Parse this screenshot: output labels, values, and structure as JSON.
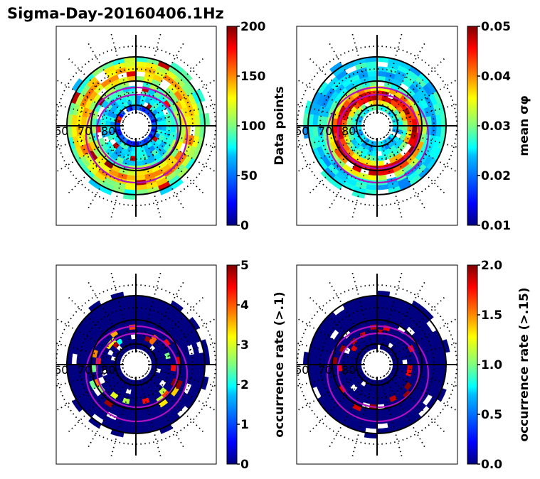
{
  "figure": {
    "title": "Sigma-Day-20160406.1Hz"
  },
  "chart_data": [
    {
      "type": "heatmap",
      "projection": "polar (magnetic latitude / local time)",
      "title": "",
      "colormap": "jet",
      "colorbar": {
        "label": "Data points",
        "range": [
          0,
          200
        ],
        "ticks": [
          "0",
          "50",
          "100",
          "150",
          "200"
        ]
      },
      "latitude_labels": [
        "60",
        "70",
        "80"
      ],
      "latitude_circles": [
        60,
        70,
        80
      ],
      "description": "Binned data point counts; mostly 20-120 with scattered high (150-200) bins in outer ring",
      "bin_summary": {
        "typical_range": [
          20,
          130
        ],
        "max_observed": 200
      }
    },
    {
      "type": "heatmap",
      "projection": "polar (magnetic latitude / local time)",
      "title": "",
      "colormap": "jet",
      "colorbar": {
        "label": "mean σφ",
        "range": [
          0.01,
          0.05
        ],
        "ticks": [
          "0.01",
          "0.02",
          "0.03",
          "0.04",
          "0.05"
        ]
      },
      "latitude_labels": [
        "60",
        "70",
        "80"
      ],
      "latitude_circles": [
        60,
        70,
        80
      ],
      "description": "Mean sigma-phi; high values (0.04-0.05) concentrated near 75-80 deg, lower (0.02-0.03) at outer latitudes",
      "bin_summary": {
        "typical_range": [
          0.018,
          0.05
        ]
      }
    },
    {
      "type": "heatmap",
      "projection": "polar (magnetic latitude / local time)",
      "title": "",
      "colormap": "jet",
      "colorbar": {
        "label": "occurrence rate (>.1)",
        "range": [
          0,
          5
        ],
        "ticks": [
          "0",
          "1",
          "2",
          "3",
          "4",
          "5"
        ]
      },
      "latitude_labels": [
        "60",
        "70",
        "80"
      ],
      "latitude_circles": [
        60,
        70,
        80
      ],
      "description": "Occurrence rate of sigma-phi > 0.1; mostly 0 with scattered patches up to 5 near the auroral oval",
      "bin_summary": {
        "typical_range": [
          0,
          0.3
        ],
        "max_observed": 5
      }
    },
    {
      "type": "heatmap",
      "projection": "polar (magnetic latitude / local time)",
      "title": "",
      "colormap": "jet",
      "colorbar": {
        "label": "occurrence rate (>.15)",
        "range": [
          0.0,
          2.0
        ],
        "ticks": [
          "0.0",
          "0.5",
          "1.0",
          "1.5",
          "2.0"
        ]
      },
      "latitude_labels": [
        "60",
        "70",
        "80"
      ],
      "latitude_circles": [
        60,
        70,
        80
      ],
      "description": "Occurrence rate of sigma-phi > 0.15; mostly 0 with sparse dark-red patches near 75-80 deg",
      "bin_summary": {
        "typical_range": [
          0,
          0.2
        ],
        "max_observed": 2.0
      }
    }
  ],
  "colors": {
    "oval": "#b010c0",
    "grid": "#000000",
    "jet_stops": [
      "#00007f",
      "#0000ff",
      "#007fff",
      "#00ffff",
      "#7fff7f",
      "#ffff00",
      "#ff7f00",
      "#ff0000",
      "#7f0000"
    ]
  }
}
